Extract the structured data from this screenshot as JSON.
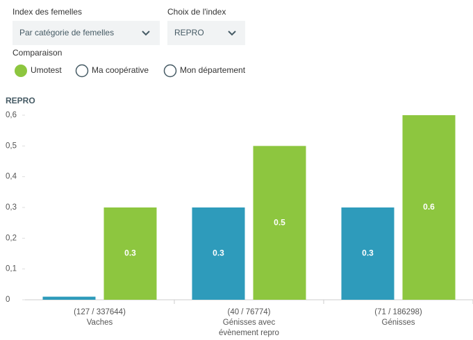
{
  "controls": {
    "index_label": "Index des femelles",
    "index_value": "Par catégorie de femelles",
    "choice_label": "Choix de l'index",
    "choice_value": "REPRO",
    "comparison_label": "Comparaison",
    "options": [
      "Umotest",
      "Ma coopérative",
      "Mon département"
    ]
  },
  "chart_data": {
    "type": "bar",
    "y_label": "REPRO",
    "categories": [
      "(127 / 337644)\nVaches",
      "(40 / 76774)\nGénisses avec\névènement repro",
      "(71 / 186298)\nGénisses"
    ],
    "series": [
      {
        "color": "#2e9bbb",
        "values": [
          0.01,
          0.3,
          0.3
        ],
        "value_labels": [
          null,
          "0.3",
          "0.3"
        ]
      },
      {
        "name": "Umotest",
        "color": "#8dc63f",
        "values": [
          0.3,
          0.5,
          0.6
        ],
        "value_labels": [
          "0.3",
          "0.5",
          "0.6"
        ]
      }
    ],
    "ylim": [
      0,
      0.6
    ],
    "yticks": [
      0,
      {
        "value": 0.1,
        "label": "0,1"
      },
      {
        "value": 0.2,
        "label": "0,2"
      },
      {
        "value": 0.3,
        "label": "0,3"
      },
      {
        "value": 0.4,
        "label": "0,4"
      },
      {
        "value": 0.5,
        "label": "0,5"
      },
      {
        "value": 0.6,
        "label": "0,6"
      }
    ]
  }
}
